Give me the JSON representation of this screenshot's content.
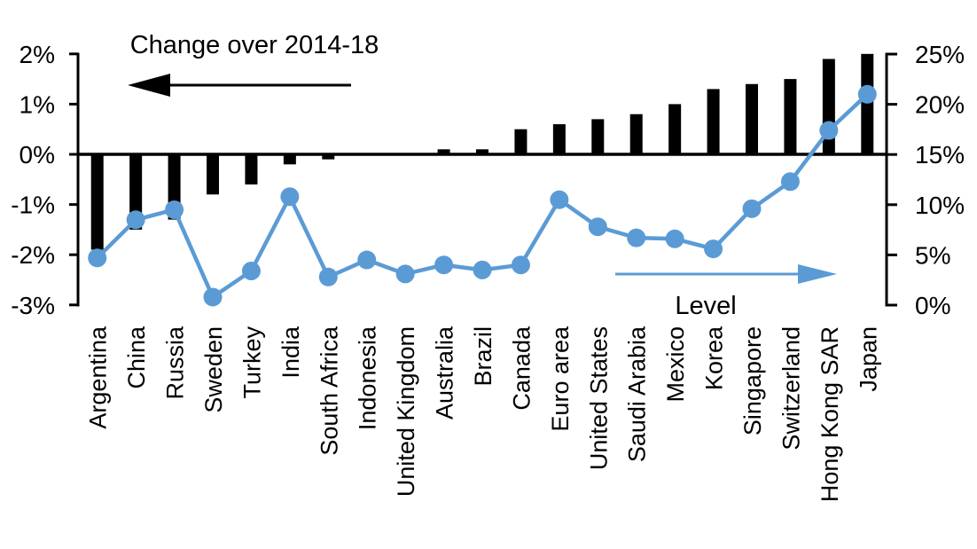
{
  "chart_data": {
    "type": "combo",
    "title": "",
    "categories": [
      "Argentina",
      "China",
      "Russia",
      "Sweden",
      "Turkey",
      "India",
      "South Africa",
      "Indonesia",
      "United Kingdom",
      "Australia",
      "Brazil",
      "Canada",
      "Euro area",
      "United States",
      "Saudi Arabia",
      "Mexico",
      "Korea",
      "Singapore",
      "Switzerland",
      "Hong Kong SAR",
      "Japan"
    ],
    "series": [
      {
        "name": "Change over 2014-18",
        "type": "bar",
        "axis": "left",
        "color": "#000000",
        "values": [
          -1.9,
          -1.5,
          -1.3,
          -0.8,
          -0.6,
          -0.2,
          -0.1,
          0,
          0,
          0.1,
          0.1,
          0.5,
          0.6,
          0.7,
          0.8,
          1.0,
          1.3,
          1.4,
          1.5,
          1.9,
          2.0
        ]
      },
      {
        "name": "Level",
        "type": "line",
        "axis": "right",
        "color": "#5B9BD5",
        "values": [
          4.7,
          8.5,
          9.5,
          0.8,
          3.4,
          10.8,
          2.8,
          4.5,
          3.1,
          4.0,
          3.5,
          4.0,
          10.5,
          7.8,
          6.7,
          6.6,
          5.6,
          9.6,
          12.3,
          17.4,
          21.0
        ]
      }
    ],
    "left_axis": {
      "unit": "%",
      "range": [
        -3,
        2
      ],
      "tick_values": [
        2,
        1,
        0,
        -1,
        -2,
        -3
      ],
      "tick_labels": [
        "2%",
        "1%",
        "0%",
        "-1%",
        "-2%",
        "-3%"
      ]
    },
    "right_axis": {
      "unit": "%",
      "range": [
        0,
        25
      ],
      "tick_values": [
        25,
        20,
        15,
        10,
        5,
        0
      ],
      "tick_labels": [
        "25%",
        "20%",
        "15%",
        "10%",
        "5%",
        "0%"
      ]
    },
    "annotations": [
      {
        "text": "Change over 2014-18",
        "arrow": "left",
        "color": "#000000"
      },
      {
        "text": "Level",
        "arrow": "right",
        "color": "#5B9BD5"
      }
    ],
    "grid": "off",
    "legend": "none (series identified by arrow annotations)"
  },
  "colors": {
    "bar": "#000000",
    "line": "#5B9BD5",
    "background": "#FFFFFF"
  }
}
